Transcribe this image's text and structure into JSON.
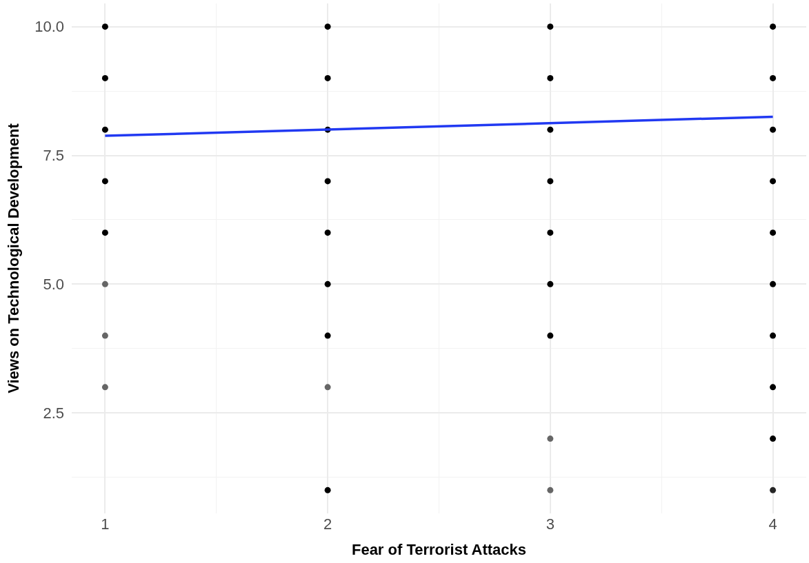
{
  "chart_data": {
    "type": "scatter",
    "xlabel": "Fear of Terrorist Attacks",
    "ylabel": "Views on Technological Development",
    "xlim": [
      0.85,
      4.15
    ],
    "xticks": [
      1,
      {
        "value": 1.5,
        "label": null
      },
      2,
      {
        "value": 2.5,
        "label": null
      },
      3,
      {
        "value": 3.5,
        "label": null
      },
      4
    ],
    "ylim": [
      0.55,
      10.45
    ],
    "yticks": [
      {
        "value": 1.25,
        "label": null
      },
      2.5,
      {
        "value": 3.75,
        "label": null
      },
      {
        "value": 5,
        "label": "5.0"
      },
      {
        "value": 6.25,
        "label": null
      },
      7.5,
      {
        "value": 8.75,
        "label": null
      },
      {
        "value": 10,
        "label": "10.0"
      }
    ],
    "grid": true,
    "series": [
      {
        "marker": "circle",
        "x": [
          1,
          1,
          1,
          1,
          1,
          1,
          1,
          1,
          2,
          2,
          2,
          2,
          2,
          2,
          2,
          2,
          2,
          3,
          3,
          3,
          3,
          3,
          3,
          3,
          3,
          3,
          4,
          4,
          4,
          4,
          4,
          4,
          4,
          4,
          4,
          4
        ],
        "values": [
          10,
          9,
          8,
          7,
          6,
          5,
          4,
          3,
          10,
          9,
          8,
          7,
          6,
          5,
          4,
          3,
          1,
          10,
          9,
          8,
          7,
          6,
          5,
          4,
          2,
          1,
          10,
          9,
          8,
          7,
          6,
          5,
          4,
          3,
          2,
          1
        ],
        "colors": [
          "#000000",
          "#000000",
          "#000000",
          "#000000",
          "#000000",
          "#666666",
          "#666666",
          "#666666",
          "#000000",
          "#000000",
          "#000000",
          "#000000",
          "#000000",
          "#000000",
          "#000000",
          "#666666",
          "#000000",
          "#000000",
          "#000000",
          "#000000",
          "#000000",
          "#000000",
          "#000000",
          "#000000",
          "#666666",
          "#666666",
          "#000000",
          "#000000",
          "#000000",
          "#000000",
          "#000000",
          "#000000",
          "#000000",
          "#000000",
          "#000000",
          "#262626"
        ]
      },
      {
        "type": "line",
        "x": [
          1,
          4
        ],
        "values": [
          7.88,
          8.25
        ],
        "color": "#2139f2",
        "line_style": "solid"
      }
    ]
  }
}
